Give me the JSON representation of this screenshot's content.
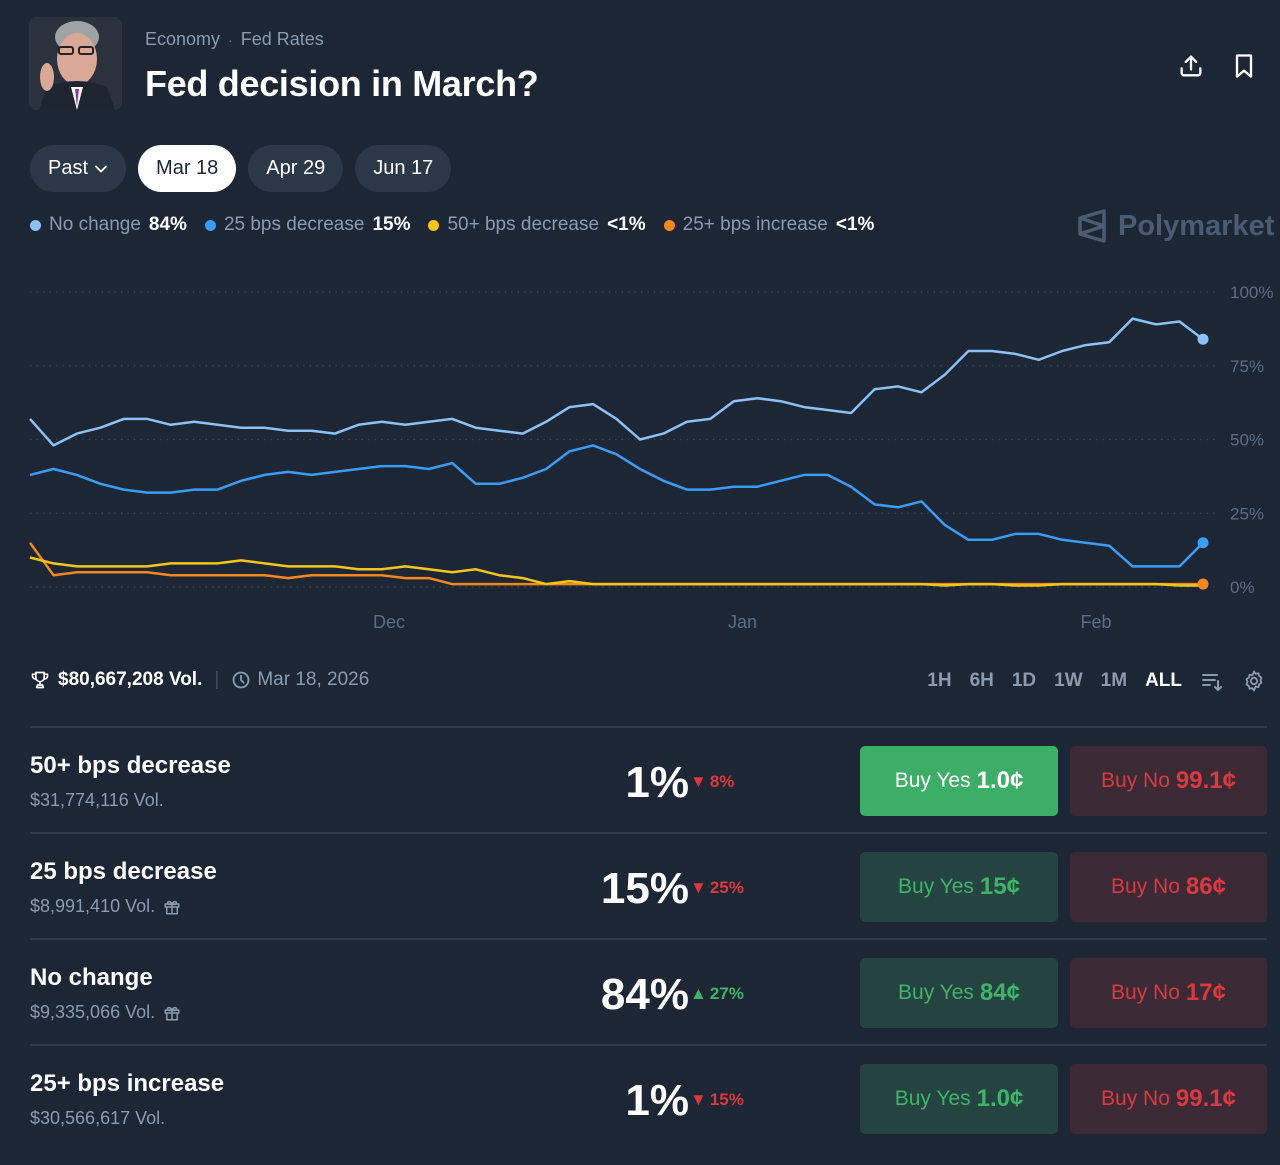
{
  "header": {
    "breadcrumb": [
      "Economy",
      "Fed Rates"
    ],
    "title": "Fed decision in March?",
    "share_icon": "share-upload-icon",
    "bookmark_icon": "bookmark-icon"
  },
  "date_pills": [
    {
      "label": "Past",
      "has_dropdown": true,
      "active": false
    },
    {
      "label": "Mar 18",
      "active": true
    },
    {
      "label": "Apr 29",
      "active": false
    },
    {
      "label": "Jun 17",
      "active": false
    }
  ],
  "legend": [
    {
      "label": "No change",
      "value": "84%",
      "color": "#8cc1f5"
    },
    {
      "label": "25 bps decrease",
      "value": "15%",
      "color": "#3b9cf6"
    },
    {
      "label": "50+ bps decrease",
      "value": "<1%",
      "color": "#f5c518"
    },
    {
      "label": "25+ bps increase",
      "value": "<1%",
      "color": "#f5871f"
    }
  ],
  "brand": "Polymarket",
  "chart_data": {
    "type": "line",
    "x_tick_labels": [
      "Dec",
      "Jan",
      "Feb"
    ],
    "y_tick_labels": [
      "100%",
      "75%",
      "50%",
      "25%",
      "0%"
    ],
    "ylim": [
      0,
      100
    ],
    "grid": true,
    "x": [
      0,
      2,
      4,
      6,
      8,
      10,
      12,
      14,
      16,
      18,
      20,
      22,
      24,
      26,
      28,
      30,
      32,
      34,
      36,
      38,
      40,
      42,
      44,
      46,
      48,
      50,
      52,
      54,
      56,
      58,
      60,
      62,
      64,
      66,
      68,
      70,
      72,
      74,
      76,
      78,
      80,
      82,
      84,
      86,
      88,
      90,
      92,
      94,
      96,
      98,
      100
    ],
    "x_units": "days since start (Dec tick at day 30, Jan at day 61, Feb at day 92)",
    "series": [
      {
        "name": "No change",
        "color": "#8cc1f5",
        "values": [
          57,
          48,
          52,
          54,
          57,
          57,
          55,
          56,
          55,
          54,
          54,
          53,
          53,
          52,
          55,
          56,
          55,
          56,
          57,
          54,
          53,
          52,
          56,
          61,
          62,
          57,
          50,
          52,
          56,
          57,
          63,
          64,
          63,
          61,
          60,
          59,
          67,
          68,
          66,
          72,
          80,
          80,
          79,
          77,
          80,
          82,
          83,
          91,
          89,
          90,
          84
        ]
      },
      {
        "name": "25 bps decrease",
        "color": "#3b9cf6",
        "values": [
          38,
          40,
          38,
          35,
          33,
          32,
          32,
          33,
          33,
          36,
          38,
          39,
          38,
          39,
          40,
          41,
          41,
          40,
          42,
          35,
          35,
          37,
          40,
          46,
          48,
          45,
          40,
          36,
          33,
          33,
          34,
          34,
          36,
          38,
          38,
          34,
          28,
          27,
          29,
          21,
          16,
          16,
          18,
          18,
          16,
          15,
          14,
          7,
          7,
          7,
          15
        ]
      },
      {
        "name": "50+ bps decrease",
        "color": "#f5c518",
        "values": [
          10,
          8,
          7,
          7,
          7,
          7,
          8,
          8,
          8,
          9,
          8,
          7,
          7,
          7,
          6,
          6,
          7,
          6,
          5,
          6,
          4,
          3,
          1,
          2,
          1,
          1,
          1,
          1,
          1,
          1,
          1,
          1,
          1,
          1,
          1,
          1,
          1,
          1,
          1,
          0.5,
          1,
          1,
          0.5,
          0.5,
          1,
          1,
          1,
          1,
          1,
          0.5,
          0.5
        ]
      },
      {
        "name": "25+ bps increase",
        "color": "#f5871f",
        "values": [
          15,
          4,
          5,
          5,
          5,
          5,
          4,
          4,
          4,
          4,
          4,
          3,
          4,
          4,
          4,
          4,
          3,
          3,
          1,
          1,
          1,
          1,
          1,
          1,
          1,
          1,
          1,
          1,
          1,
          1,
          1,
          1,
          1,
          1,
          1,
          1,
          1,
          1,
          1,
          1,
          1,
          1,
          1,
          1,
          1,
          1,
          1,
          1,
          1,
          1,
          1
        ]
      }
    ]
  },
  "meta": {
    "volume": "$80,667,208 Vol.",
    "end_date": "Mar 18, 2026"
  },
  "time_ranges": [
    {
      "label": "1H",
      "active": false
    },
    {
      "label": "6H",
      "active": false
    },
    {
      "label": "1D",
      "active": false
    },
    {
      "label": "1W",
      "active": false
    },
    {
      "label": "1M",
      "active": false
    },
    {
      "label": "ALL",
      "active": true
    }
  ],
  "outcomes": [
    {
      "name": "50+ bps decrease",
      "volume": "$31,774,116 Vol.",
      "has_gift": false,
      "probability": "1%",
      "change": "8%",
      "direction": "down",
      "yes_label": "Buy Yes",
      "yes_price": "1.0¢",
      "no_label": "Buy No",
      "no_price": "99.1¢",
      "yes_primary": true
    },
    {
      "name": "25 bps decrease",
      "volume": "$8,991,410 Vol.",
      "has_gift": true,
      "probability": "15%",
      "change": "25%",
      "direction": "down",
      "yes_label": "Buy Yes",
      "yes_price": "15¢",
      "no_label": "Buy No",
      "no_price": "86¢",
      "yes_primary": false
    },
    {
      "name": "No change",
      "volume": "$9,335,066 Vol.",
      "has_gift": true,
      "probability": "84%",
      "change": "27%",
      "direction": "up",
      "yes_label": "Buy Yes",
      "yes_price": "84¢",
      "no_label": "Buy No",
      "no_price": "17¢",
      "yes_primary": false
    },
    {
      "name": "25+ bps increase",
      "volume": "$30,566,617 Vol.",
      "has_gift": false,
      "probability": "1%",
      "change": "15%",
      "direction": "down",
      "yes_label": "Buy Yes",
      "yes_price": "1.0¢",
      "no_label": "Buy No",
      "no_price": "99.1¢",
      "yes_primary": false
    }
  ]
}
